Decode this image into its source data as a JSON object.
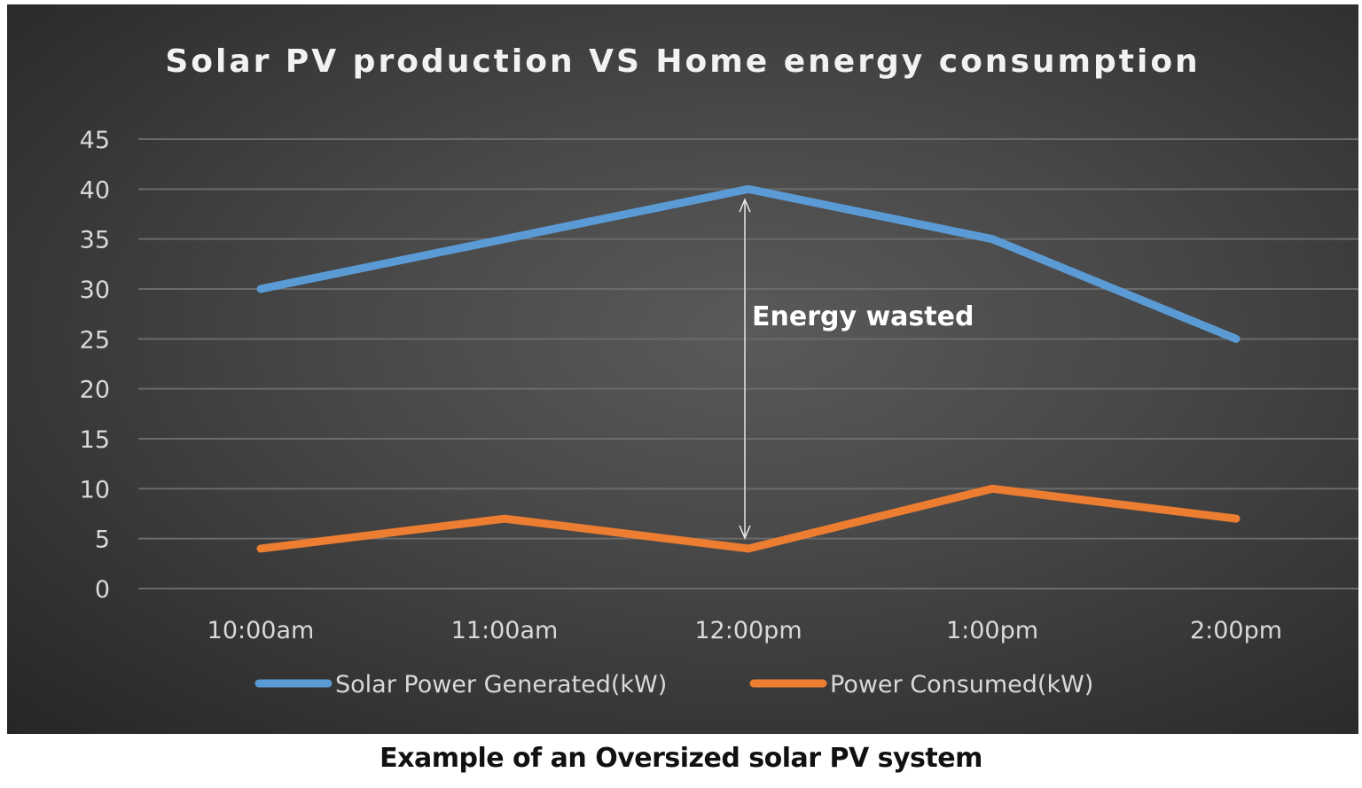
{
  "chart_data": {
    "type": "line",
    "title": "Solar PV production VS Home energy consumption",
    "categories": [
      "10:00am",
      "11:00am",
      "12:00pm",
      "1:00pm",
      "2:00pm"
    ],
    "series": [
      {
        "name": "Solar Power Generated(kW)",
        "values": [
          30,
          35,
          40,
          35,
          25
        ],
        "color": "#5b9bd5"
      },
      {
        "name": "Power Consumed(kW)",
        "values": [
          4,
          7,
          4,
          10,
          7
        ],
        "color": "#ed7d31"
      }
    ],
    "ylim": [
      0,
      45
    ],
    "yticks": [
      0,
      5,
      10,
      15,
      20,
      25,
      30,
      35,
      40,
      45
    ],
    "grid": true,
    "legend": "bottom",
    "annotation": {
      "text": "Energy wasted",
      "category": "12:00pm",
      "from": 4,
      "to": 40
    }
  },
  "caption": "Example of an Oversized solar PV system"
}
